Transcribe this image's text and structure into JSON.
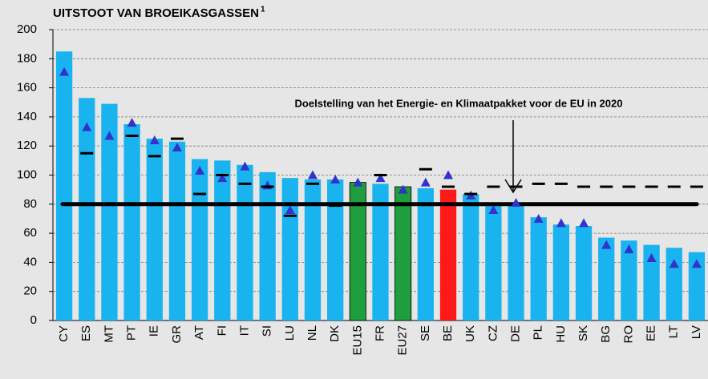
{
  "chart_data": {
    "type": "bar",
    "title": "UITSTOOT VAN BROEIKASGASSEN",
    "title_note": "1",
    "annotation": "Doelstelling van het Energie- en Klimaatpakket voor de EU in 2020",
    "categories": [
      "CY",
      "ES",
      "MT",
      "PT",
      "IE",
      "GR",
      "AT",
      "FI",
      "IT",
      "SI",
      "LU",
      "NL",
      "DK",
      "EU15",
      "FR",
      "EU27",
      "SE",
      "BE",
      "UK",
      "CZ",
      "DE",
      "PL",
      "HU",
      "SK",
      "BG",
      "RO",
      "EE",
      "LT",
      "LV"
    ],
    "values": [
      185,
      153,
      149,
      135,
      125,
      123,
      111,
      110,
      107,
      102,
      98,
      97,
      97,
      95,
      94,
      92,
      91,
      90,
      87,
      80,
      79,
      71,
      66,
      65,
      57,
      55,
      52,
      50,
      47
    ],
    "colors": [
      "#19b3ef",
      "#19b3ef",
      "#19b3ef",
      "#19b3ef",
      "#19b3ef",
      "#19b3ef",
      "#19b3ef",
      "#19b3ef",
      "#19b3ef",
      "#19b3ef",
      "#19b3ef",
      "#19b3ef",
      "#19b3ef",
      "#1e9e3e",
      "#19b3ef",
      "#1e9e3e",
      "#19b3ef",
      "#ff1a1a",
      "#19b3ef",
      "#19b3ef",
      "#19b3ef",
      "#19b3ef",
      "#19b3ef",
      "#19b3ef",
      "#19b3ef",
      "#19b3ef",
      "#19b3ef",
      "#19b3ef",
      "#19b3ef"
    ],
    "series": [
      {
        "type": "triangle",
        "color": "#3333cc",
        "values": [
          171,
          133,
          127,
          136,
          124,
          119,
          103,
          98,
          106,
          93,
          76,
          100,
          97,
          95,
          98,
          90,
          95,
          100,
          86,
          76,
          81,
          70,
          67,
          67,
          52,
          49,
          43,
          39,
          39
        ]
      },
      {
        "type": "dash",
        "color": "#000000",
        "values": [
          null,
          115,
          null,
          127,
          113,
          125,
          87,
          100,
          94,
          92,
          72,
          94,
          79,
          null,
          100,
          null,
          104,
          92,
          87,
          92,
          92,
          94,
          94,
          92,
          92,
          92,
          92,
          92,
          92
        ]
      }
    ],
    "target_value": 80,
    "ylim": [
      0,
      200
    ],
    "yticks": [
      0,
      20,
      40,
      60,
      80,
      100,
      120,
      140,
      160,
      180,
      200
    ],
    "grid": true
  }
}
